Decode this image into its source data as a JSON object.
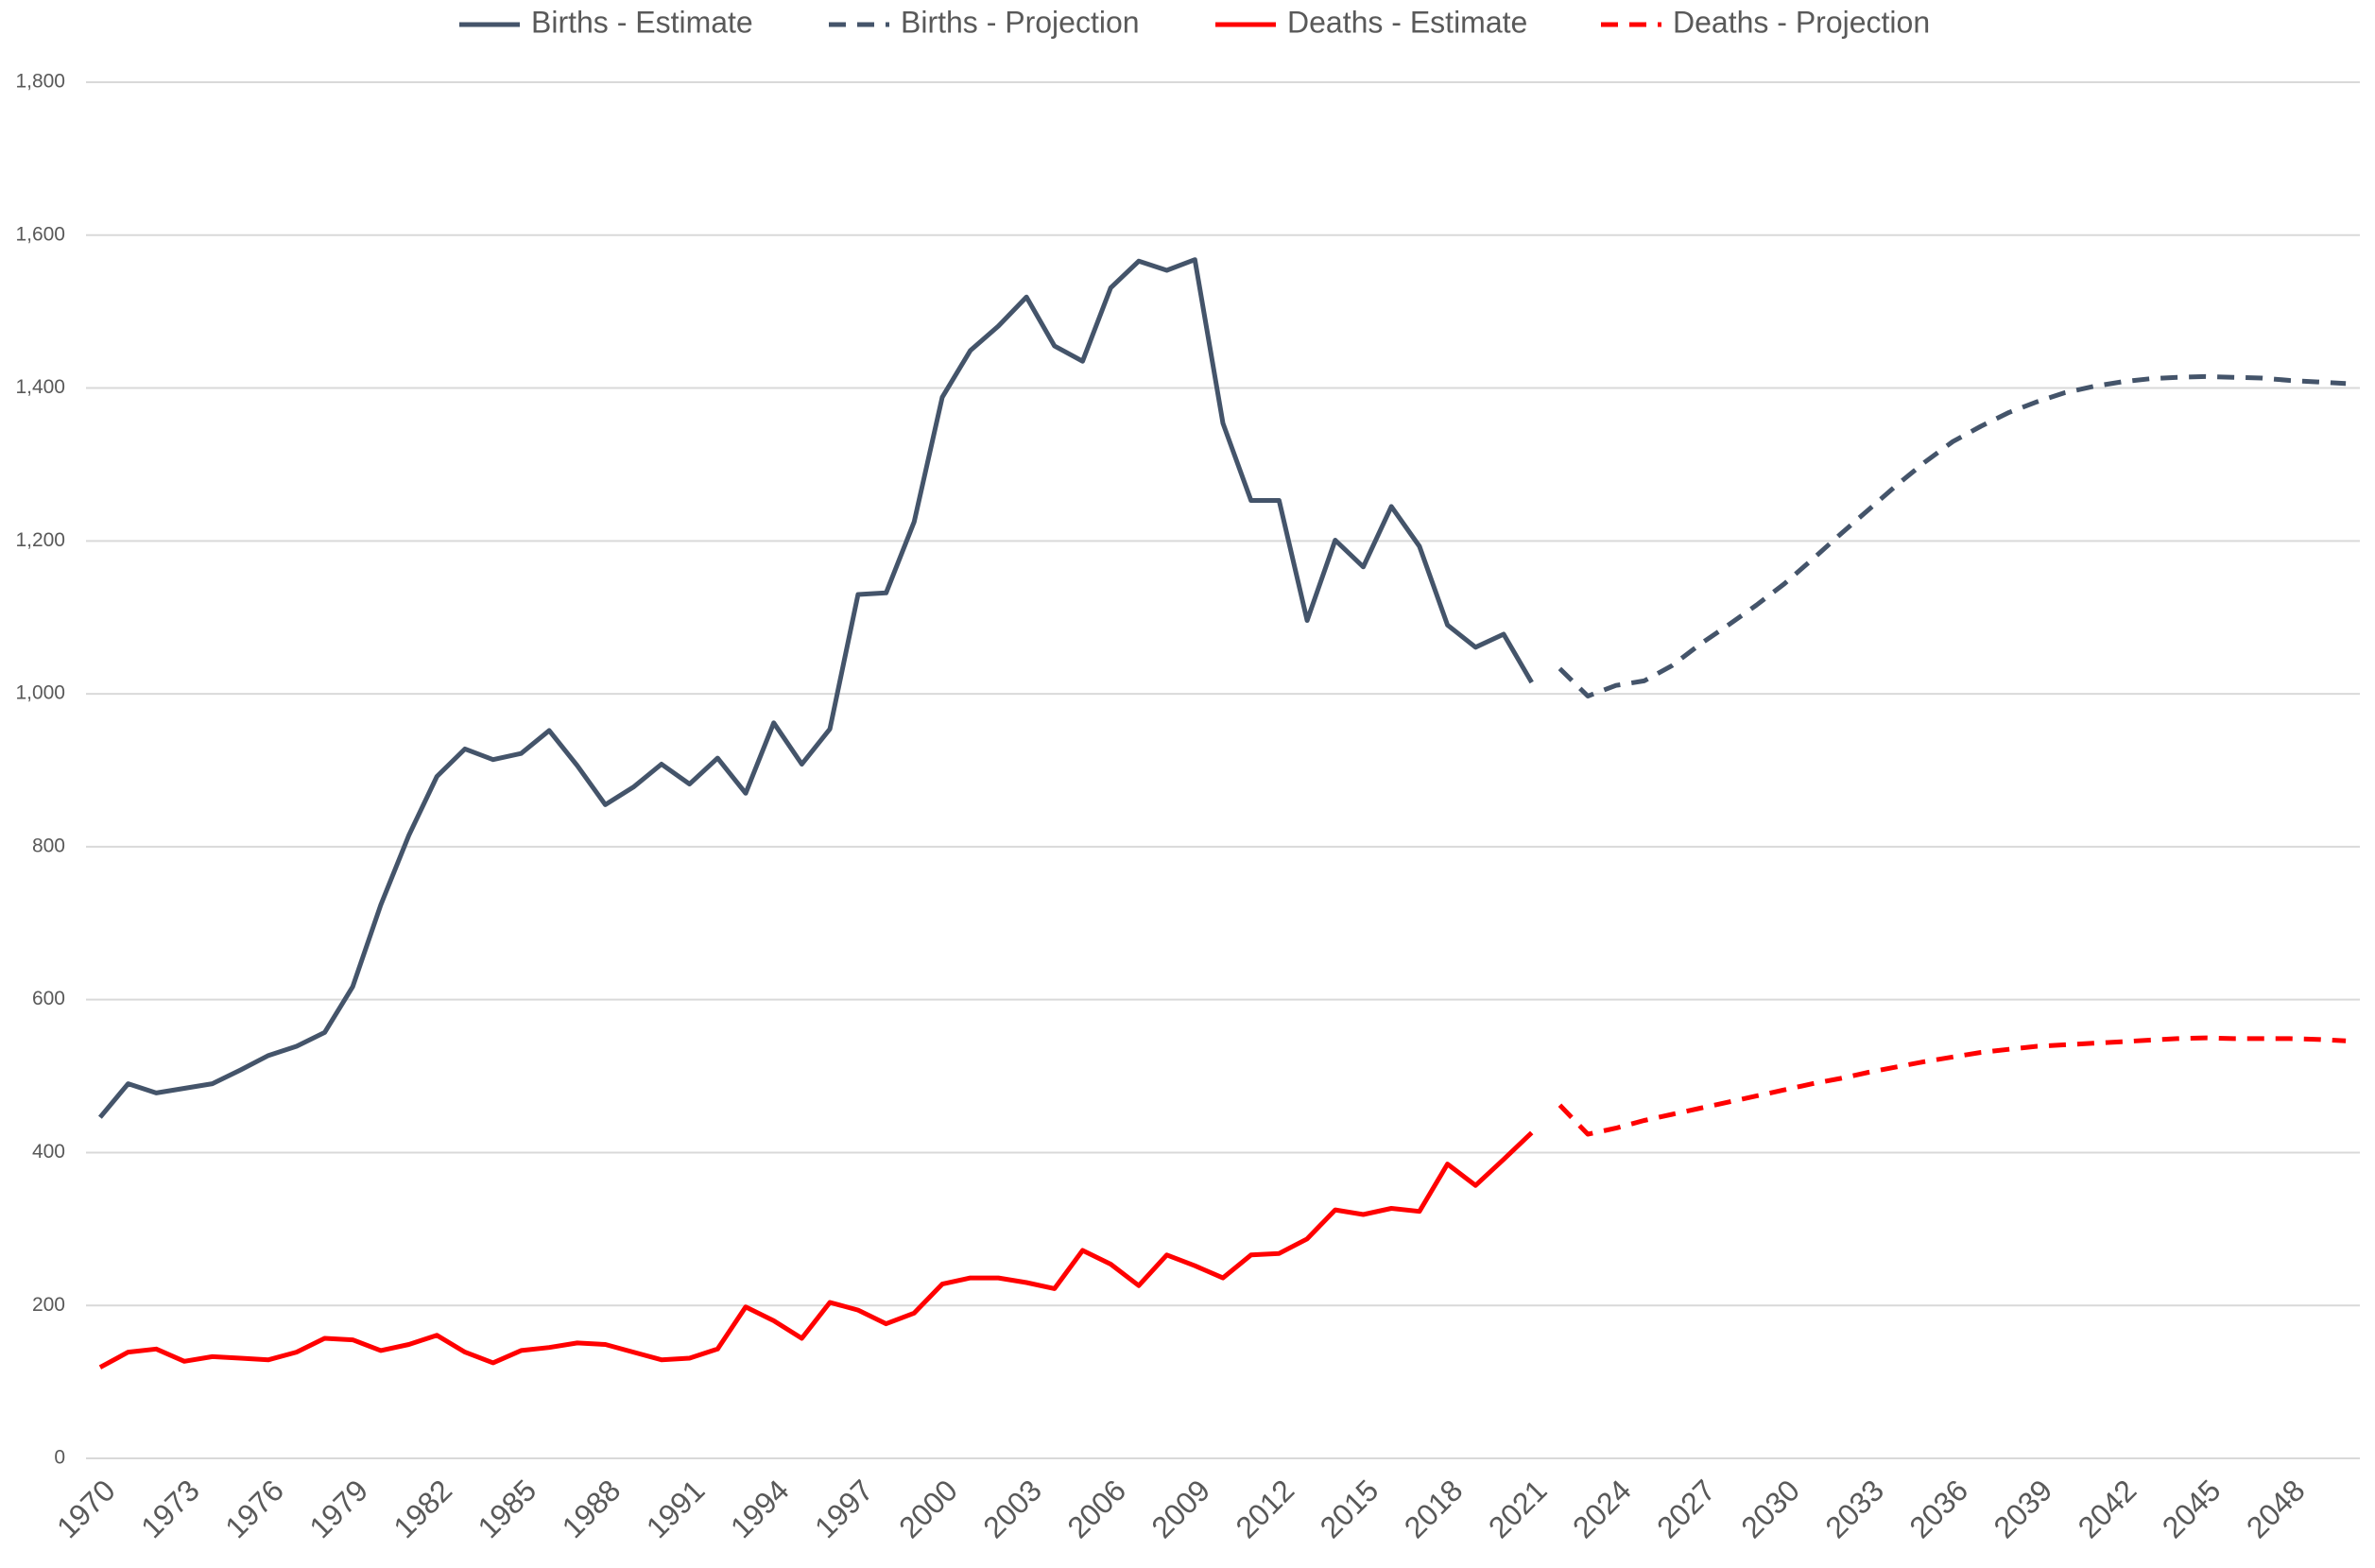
{
  "chart_data": {
    "type": "line",
    "x": [
      1970,
      1971,
      1972,
      1973,
      1974,
      1975,
      1976,
      1977,
      1978,
      1979,
      1980,
      1981,
      1982,
      1983,
      1984,
      1985,
      1986,
      1987,
      1988,
      1989,
      1990,
      1991,
      1992,
      1993,
      1994,
      1995,
      1996,
      1997,
      1998,
      1999,
      2000,
      2001,
      2002,
      2003,
      2004,
      2005,
      2006,
      2007,
      2008,
      2009,
      2010,
      2011,
      2012,
      2013,
      2014,
      2015,
      2016,
      2017,
      2018,
      2019,
      2020,
      2021,
      2022,
      2023,
      2024,
      2025,
      2026,
      2027,
      2028,
      2029,
      2030,
      2031,
      2032,
      2033,
      2034,
      2035,
      2036,
      2037,
      2038,
      2039,
      2040,
      2041,
      2042,
      2043,
      2044,
      2045,
      2046,
      2047,
      2048,
      2049,
      2050
    ],
    "xlim": [
      1969.5,
      2050.5
    ],
    "xticks": [
      1970,
      1973,
      1976,
      1979,
      1982,
      1985,
      1988,
      1991,
      1994,
      1997,
      2000,
      2003,
      2006,
      2009,
      2012,
      2015,
      2018,
      2021,
      2024,
      2027,
      2030,
      2033,
      2036,
      2039,
      2042,
      2045,
      2048
    ],
    "ylim": [
      0,
      1800
    ],
    "yticks": [
      0,
      200,
      400,
      600,
      800,
      {
        "value": 1000,
        "label": "1,000"
      },
      {
        "value": 1200,
        "label": "1,200"
      },
      {
        "value": 1400,
        "label": "1,400"
      },
      {
        "value": 1600,
        "label": "1,600"
      },
      {
        "value": 1800,
        "label": "1,800"
      }
    ],
    "grid": true,
    "legend": "top",
    "series": [
      {
        "name": "Births - Estimate",
        "color": "#44546a",
        "line_style": "solid",
        "values": [
          446,
          490,
          478,
          484,
          490,
          508,
          527,
          539,
          557,
          617,
          724,
          815,
          892,
          928,
          914,
          922,
          952,
          906,
          855,
          878,
          908,
          882,
          916,
          870,
          962,
          908,
          954,
          1130,
          1132,
          1225,
          1388,
          1449,
          1481,
          1519,
          1455,
          1435,
          1531,
          1566,
          1554,
          1568,
          1354,
          1253,
          1253,
          1096,
          1201,
          1166,
          1245,
          1193,
          1090,
          1061,
          1078,
          1015,
          null,
          null,
          null,
          null,
          null,
          null,
          null,
          null,
          null,
          null,
          null,
          null,
          null,
          null,
          null,
          null,
          null,
          null,
          null,
          null,
          null,
          null,
          null,
          null,
          null,
          null,
          null,
          null,
          null
        ]
      },
      {
        "name": "Births - Projection",
        "color": "#44546a",
        "line_style": "dashed",
        "values": [
          null,
          null,
          null,
          null,
          null,
          null,
          null,
          null,
          null,
          null,
          null,
          null,
          null,
          null,
          null,
          null,
          null,
          null,
          null,
          null,
          null,
          null,
          null,
          null,
          null,
          null,
          null,
          null,
          null,
          null,
          null,
          null,
          null,
          null,
          null,
          null,
          null,
          null,
          null,
          null,
          null,
          null,
          null,
          null,
          null,
          null,
          null,
          null,
          null,
          null,
          null,
          null,
          1033,
          997,
          1011,
          1017,
          1037,
          1065,
          1090,
          1116,
          1144,
          1176,
          1209,
          1241,
          1273,
          1303,
          1330,
          1350,
          1368,
          1382,
          1394,
          1402,
          1408,
          1412,
          1414,
          1415,
          1414,
          1413,
          1410,
          1408,
          1406
        ]
      },
      {
        "name": "Deaths - Estimate",
        "color": "#ff0000",
        "line_style": "solid",
        "values": [
          119,
          139,
          143,
          127,
          133,
          131,
          129,
          139,
          157,
          155,
          141,
          149,
          161,
          139,
          125,
          141,
          145,
          151,
          149,
          139,
          129,
          131,
          143,
          198,
          180,
          157,
          204,
          194,
          176,
          190,
          228,
          236,
          236,
          230,
          222,
          272,
          254,
          226,
          266,
          252,
          236,
          266,
          268,
          287,
          325,
          319,
          327,
          323,
          385,
          357,
          391,
          426,
          null,
          null,
          null,
          null,
          null,
          null,
          null,
          null,
          null,
          null,
          null,
          null,
          null,
          null,
          null,
          null,
          null,
          null,
          null,
          null,
          null,
          null,
          null,
          null,
          null,
          null,
          null,
          null,
          null
        ]
      },
      {
        "name": "Deaths - Projection",
        "color": "#ff0000",
        "line_style": "dashed",
        "values": [
          null,
          null,
          null,
          null,
          null,
          null,
          null,
          null,
          null,
          null,
          null,
          null,
          null,
          null,
          null,
          null,
          null,
          null,
          null,
          null,
          null,
          null,
          null,
          null,
          null,
          null,
          null,
          null,
          null,
          null,
          null,
          null,
          null,
          null,
          null,
          null,
          null,
          null,
          null,
          null,
          null,
          null,
          null,
          null,
          null,
          null,
          null,
          null,
          null,
          null,
          null,
          null,
          462,
          424,
          432,
          442,
          450,
          458,
          466,
          474,
          482,
          490,
          497,
          505,
          512,
          519,
          525,
          531,
          535,
          539,
          541,
          543,
          545,
          547,
          549,
          550,
          549,
          549,
          549,
          548,
          546
        ]
      }
    ]
  }
}
